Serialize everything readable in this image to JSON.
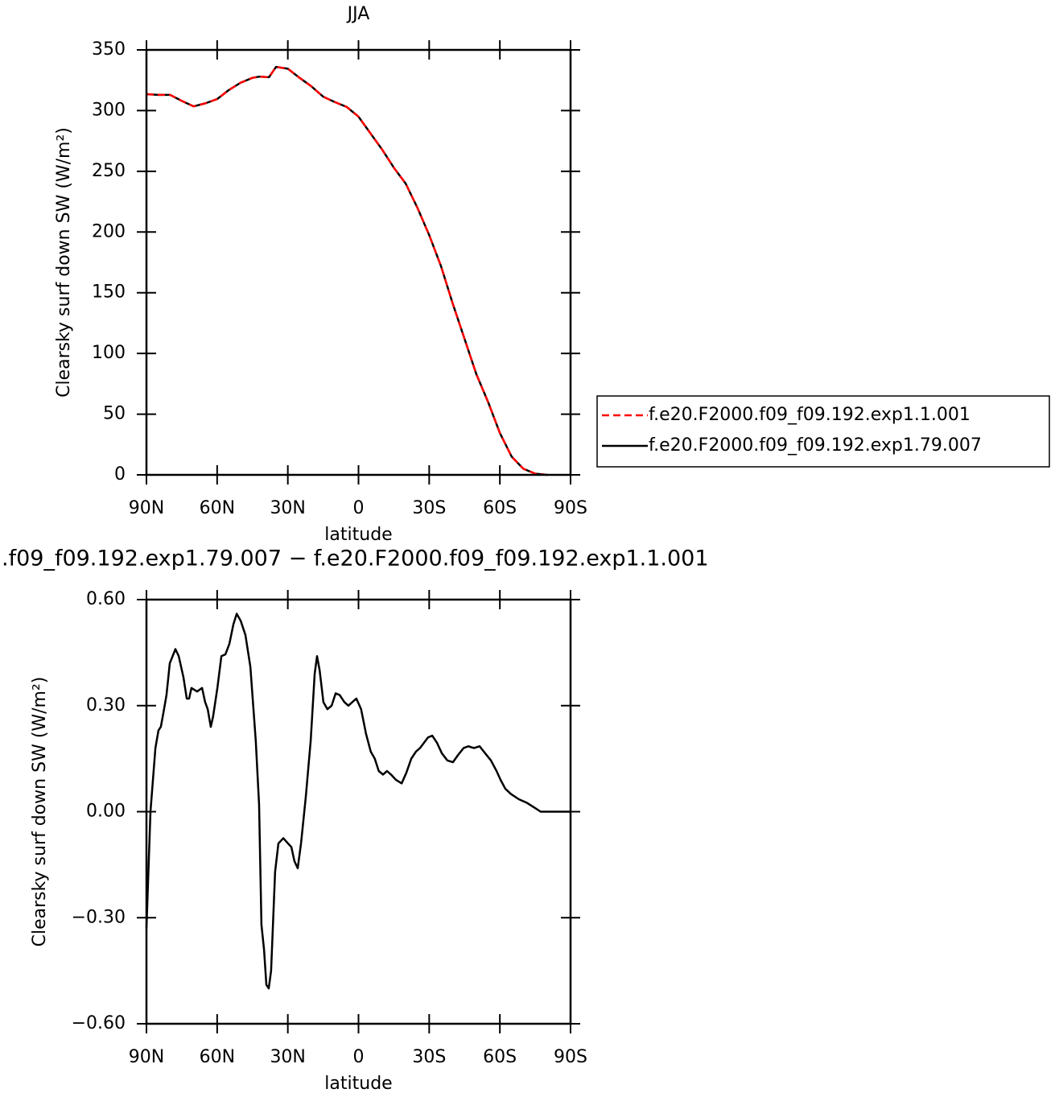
{
  "chart_data": [
    {
      "type": "line",
      "title": "JJA",
      "xlabel": "latitude",
      "ylabel": "Clearsky surf down SW (W/m²)",
      "x": [
        90,
        85,
        80,
        75,
        70,
        65,
        60,
        55,
        50,
        45,
        42,
        38,
        35,
        30,
        25,
        20,
        15,
        10,
        5,
        0,
        -5,
        -10,
        -15,
        -20,
        -25,
        -30,
        -35,
        -40,
        -45,
        -50,
        -55,
        -60,
        -65,
        -70,
        -75,
        -80
      ],
      "series": [
        {
          "name": "f.e20.F2000.f09_f09.192.exp1.79.007",
          "color": "#000000",
          "style": "solid",
          "values": [
            313.5,
            313,
            313,
            308,
            303.5,
            306,
            309.5,
            317,
            323,
            327,
            328,
            327.5,
            336,
            334.5,
            327,
            320,
            311.5,
            307,
            303,
            295,
            281.5,
            268,
            253,
            240,
            220,
            197.5,
            172,
            141,
            112,
            83,
            60,
            34.5,
            15,
            5,
            1,
            0
          ]
        },
        {
          "name": "f.e20.F2000.f09_f09.192.exp1.1.001",
          "color": "#ff0000",
          "style": "dashed",
          "values": [
            313.5,
            313,
            313,
            308,
            303.5,
            306,
            309.5,
            317,
            323,
            327,
            328,
            327.5,
            336,
            334.5,
            327,
            320,
            311.5,
            307,
            303,
            295,
            281.5,
            268,
            253,
            240,
            220,
            197.5,
            172,
            141,
            112,
            83,
            60,
            34.5,
            15,
            5,
            1,
            0
          ]
        }
      ],
      "legend_order": [
        1,
        0
      ],
      "legend": "right",
      "xlim": [
        90,
        -90
      ],
      "xticks": [
        {
          "value": 90,
          "label": "90N"
        },
        {
          "value": 60,
          "label": "60N"
        },
        {
          "value": 30,
          "label": "30N"
        },
        0,
        {
          "value": -30,
          "label": "30S"
        },
        {
          "value": -60,
          "label": "60S"
        },
        {
          "value": -90,
          "label": "90S"
        }
      ],
      "ylim": [
        0,
        350
      ],
      "yticks": [
        0,
        50,
        100,
        150,
        200,
        250,
        300,
        350
      ]
    },
    {
      "type": "line",
      "title": ".f09_f09.192.exp1.79.007 − f.e20.F2000.f09_f09.192.exp1.1.001",
      "xlabel": "latitude",
      "ylabel": "Clearsky surf down SW (W/m²)",
      "x": [
        90,
        88.3,
        86.2,
        84.9,
        83.9,
        82.8,
        81.5,
        80.1,
        77.7,
        76.3,
        74.3,
        72.9,
        71.9,
        70.9,
        68.5,
        66.4,
        65.1,
        64.0,
        62.7,
        61.7,
        59.9,
        58.2,
        56.5,
        54.8,
        53.1,
        51.7,
        50.0,
        48.0,
        45.9,
        43.6,
        42.2,
        41.2,
        40.1,
        39.1,
        38.1,
        37.1,
        35.4,
        34.0,
        31.9,
        29.9,
        28.5,
        27.2,
        25.8,
        24.4,
        22.4,
        20.3,
        18.6,
        17.6,
        16.5,
        14.9,
        13.2,
        11.4,
        9.7,
        8.0,
        6.0,
        4.3,
        2.6,
        0.9,
        -1.1,
        -3.2,
        -5.2,
        -6.9,
        -8.6,
        -10.4,
        -12.1,
        -13.8,
        -15.9,
        -18.3,
        -20.3,
        -22.4,
        -24.4,
        -26.1,
        -27.8,
        -29.5,
        -31.3,
        -33.3,
        -35.4,
        -37.7,
        -40.1,
        -42.2,
        -44.6,
        -46.6,
        -49.0,
        -51.4,
        -53.8,
        -56.2,
        -58.6,
        -60.3,
        -62.3,
        -64.7,
        -68.1,
        -71.5,
        -75.0,
        -77.3,
        -80,
        -90
      ],
      "color": "#000000",
      "values": [
        -0.33,
        0.0,
        0.18,
        0.23,
        0.24,
        0.28,
        0.33,
        0.42,
        0.46,
        0.44,
        0.38,
        0.32,
        0.32,
        0.35,
        0.34,
        0.35,
        0.31,
        0.29,
        0.24,
        0.27,
        0.35,
        0.44,
        0.445,
        0.475,
        0.53,
        0.56,
        0.54,
        0.5,
        0.41,
        0.2,
        0.02,
        -0.32,
        -0.39,
        -0.49,
        -0.5,
        -0.45,
        -0.17,
        -0.09,
        -0.075,
        -0.09,
        -0.1,
        -0.14,
        -0.16,
        -0.09,
        0.04,
        0.2,
        0.39,
        0.44,
        0.4,
        0.31,
        0.29,
        0.3,
        0.335,
        0.33,
        0.31,
        0.3,
        0.31,
        0.32,
        0.29,
        0.22,
        0.17,
        0.15,
        0.115,
        0.105,
        0.115,
        0.105,
        0.09,
        0.08,
        0.11,
        0.15,
        0.17,
        0.18,
        0.195,
        0.21,
        0.215,
        0.195,
        0.165,
        0.145,
        0.14,
        0.16,
        0.18,
        0.185,
        0.18,
        0.185,
        0.165,
        0.145,
        0.115,
        0.09,
        0.065,
        0.05,
        0.035,
        0.025,
        0.01,
        0.0,
        0,
        0
      ],
      "xlim": [
        90,
        -90
      ],
      "xticks": [
        {
          "value": 90,
          "label": "90N"
        },
        {
          "value": 60,
          "label": "60N"
        },
        {
          "value": 30,
          "label": "30N"
        },
        0,
        {
          "value": -30,
          "label": "30S"
        },
        {
          "value": -60,
          "label": "60S"
        },
        {
          "value": -90,
          "label": "90S"
        }
      ],
      "ylim": [
        -0.6,
        0.6
      ],
      "yticks": [
        {
          "value": -0.6,
          "label": "−0.60"
        },
        {
          "value": -0.3,
          "label": "−0.30"
        },
        {
          "value": 0,
          "label": "0.00"
        },
        {
          "value": 0.3,
          "label": "0.30"
        },
        {
          "value": 0.6,
          "label": "0.60"
        }
      ]
    }
  ]
}
